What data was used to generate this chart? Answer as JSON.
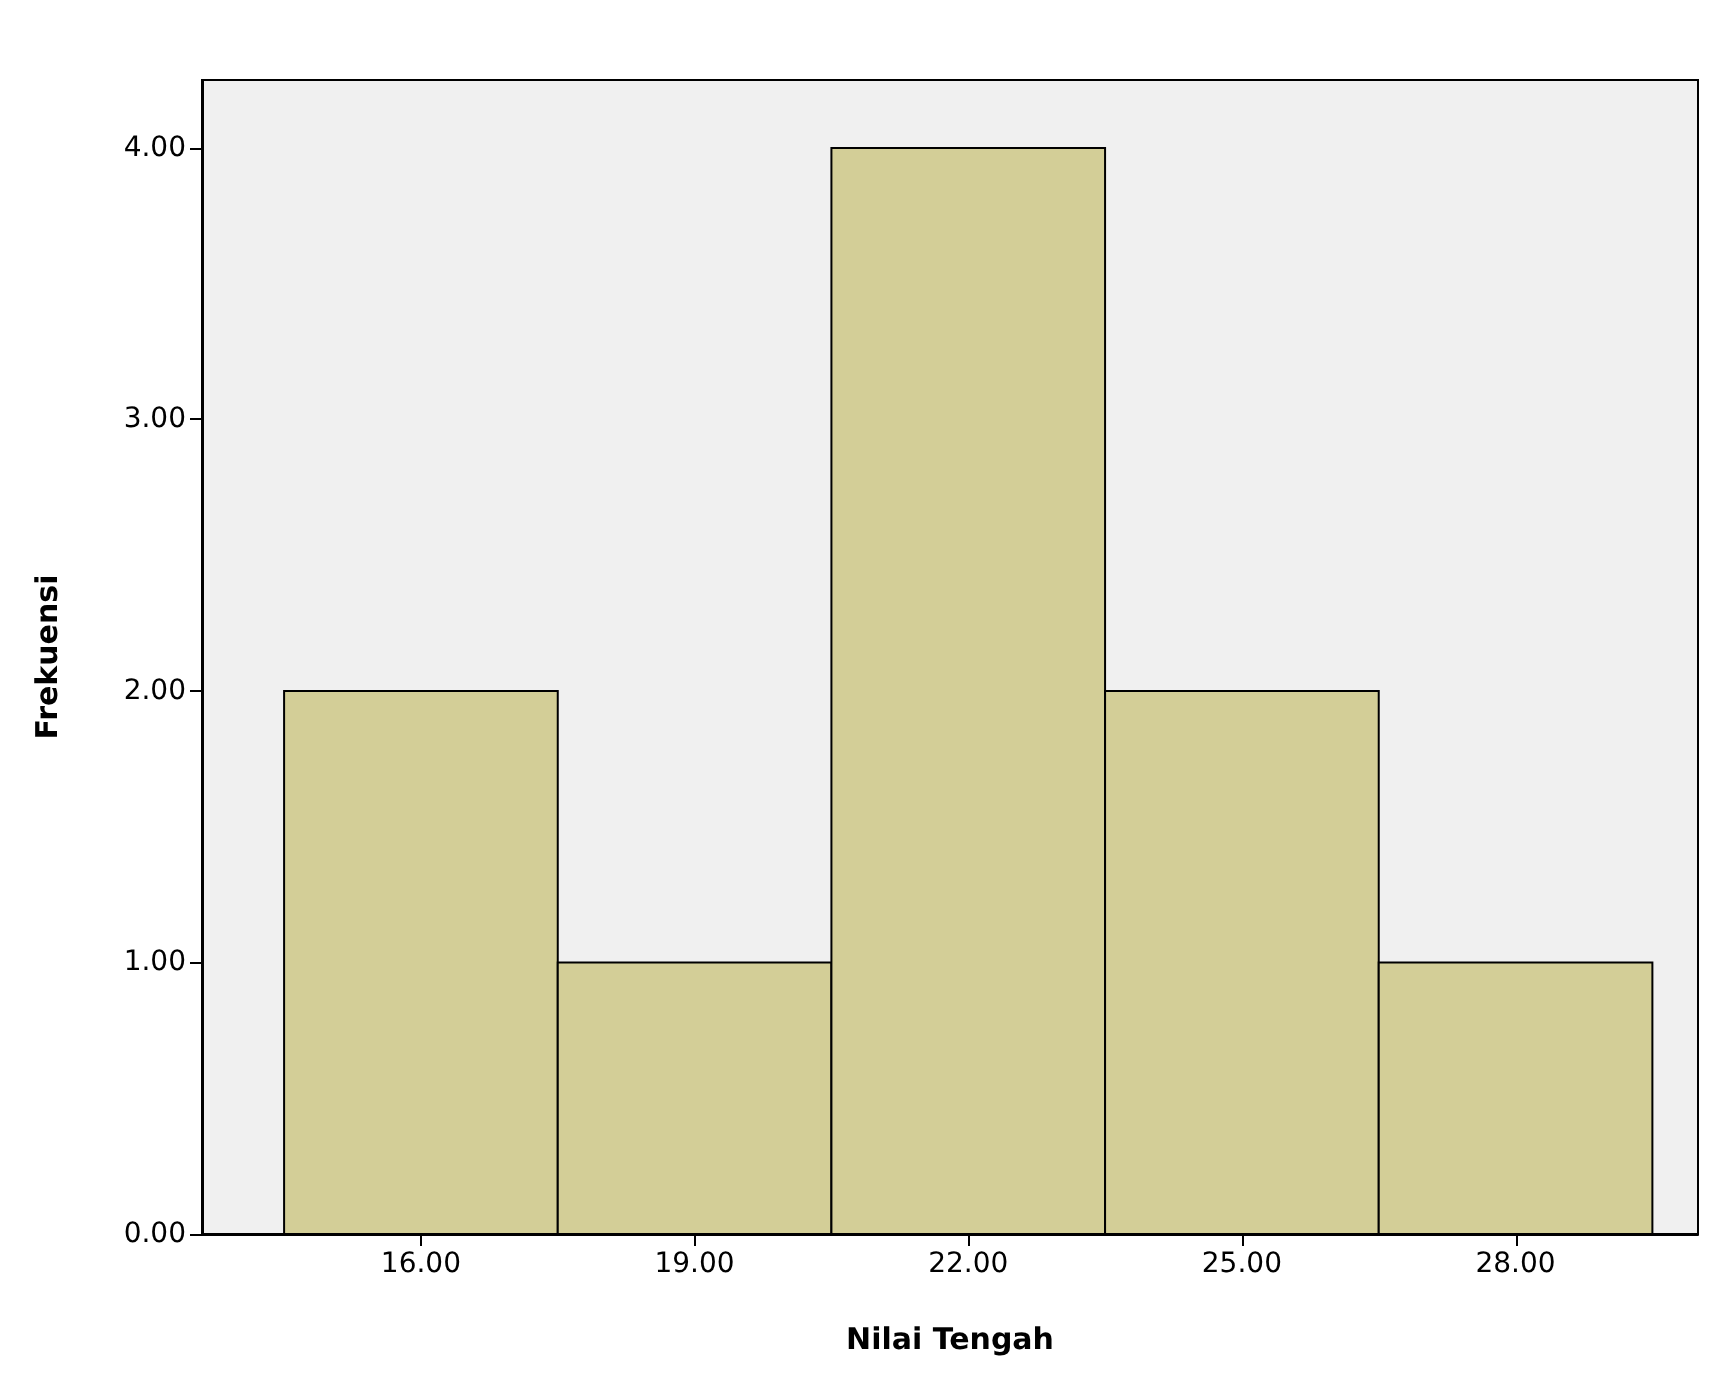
{
  "chart_data": {
    "type": "histogram",
    "xlabel": "Nilai Tengah",
    "ylabel": "Frekuensi",
    "bins": [
      14.5,
      17.5,
      20.5,
      23.5,
      26.5,
      29.5
    ],
    "values": [
      2,
      1,
      4,
      2,
      1
    ],
    "color": "#d3ce97",
    "xlim": [
      13.6,
      30
    ],
    "xticks": [
      {
        "value": 16,
        "label": "16.00"
      },
      {
        "value": 19,
        "label": "19.00"
      },
      {
        "value": 22,
        "label": "22.00"
      },
      {
        "value": 25,
        "label": "25.00"
      },
      {
        "value": 28,
        "label": "28.00"
      }
    ],
    "ylim": [
      0,
      4.25
    ],
    "yticks": [
      {
        "value": 0,
        "label": "0.00"
      },
      {
        "value": 1,
        "label": "1.00"
      },
      {
        "value": 2,
        "label": "2.00"
      },
      {
        "value": 3,
        "label": "3.00"
      },
      {
        "value": 4,
        "label": "4.00"
      }
    ],
    "grid": false
  }
}
